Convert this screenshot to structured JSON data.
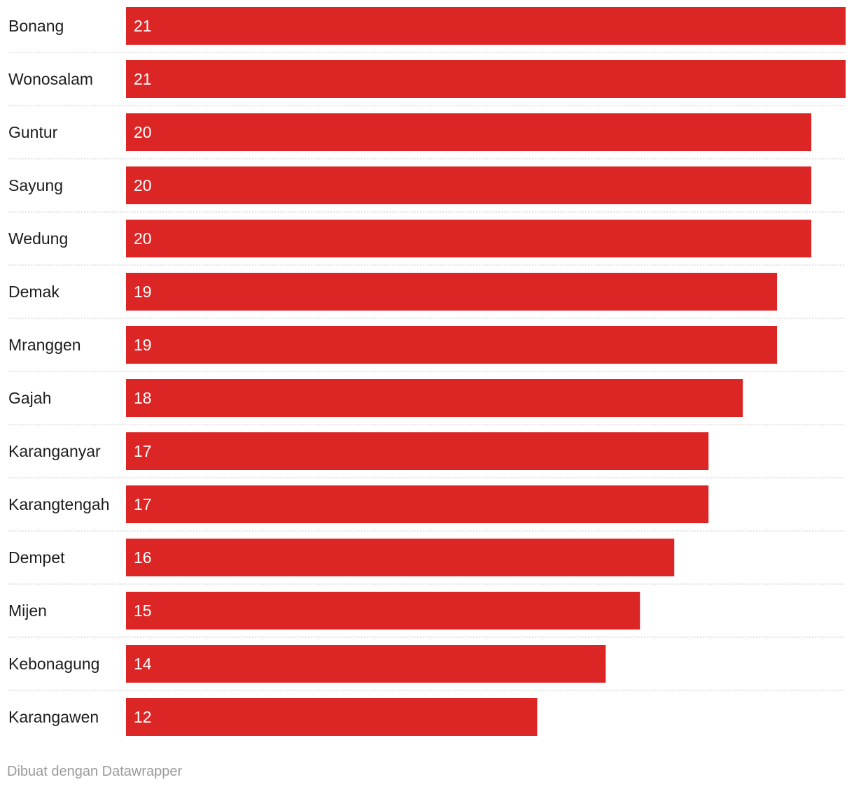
{
  "chart_data": {
    "type": "bar",
    "orientation": "horizontal",
    "categories": [
      "Bonang",
      "Wonosalam",
      "Guntur",
      "Sayung",
      "Wedung",
      "Demak",
      "Mranggen",
      "Gajah",
      "Karanganyar",
      "Karangtengah",
      "Dempet",
      "Mijen",
      "Kebonagung",
      "Karangawen"
    ],
    "values": [
      21,
      21,
      20,
      20,
      20,
      19,
      19,
      18,
      17,
      17,
      16,
      15,
      14,
      12
    ],
    "xlim": [
      0,
      21
    ],
    "bar_color": "#dc2626",
    "separator_color": "#c8c8c8",
    "value_labels": "inside-left",
    "grid": false,
    "title": "",
    "xlabel": "",
    "ylabel": ""
  },
  "footer": {
    "credit": "Dibuat dengan Datawrapper"
  }
}
